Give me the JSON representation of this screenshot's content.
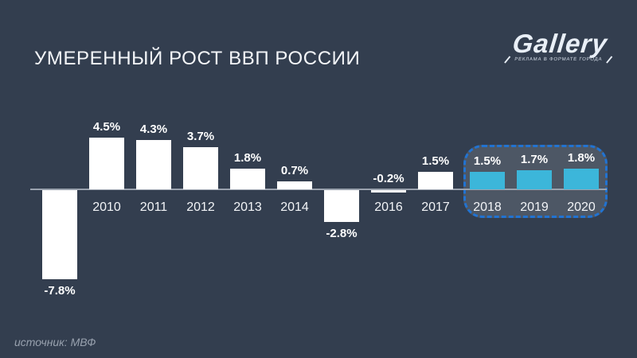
{
  "header": {
    "title": "УМЕРЕННЫЙ РОСТ ВВП РОССИИ"
  },
  "logo": {
    "name": "Gallery",
    "tagline": "РЕКЛАМА В ФОРМАТЕ ГОРОДА"
  },
  "footer": {
    "source": "источник: МВФ"
  },
  "colors": {
    "background": "#333e4f",
    "actual_bar": "#ffffff",
    "forecast_bar": "#3cb6da",
    "forecast_box_border": "#2173d2",
    "axis": "#9aa2ae",
    "text": "#ffffff",
    "muted_text": "#98a1ae"
  },
  "chart_data": {
    "type": "bar",
    "title": "УМЕРЕННЫЙ РОСТ ВВП РОССИИ",
    "unit": "%",
    "categories": [
      "",
      "2010",
      "2011",
      "2012",
      "2013",
      "2014",
      "",
      "2016",
      "2017",
      "2018",
      "2019",
      "2020"
    ],
    "values": [
      -7.8,
      4.5,
      4.3,
      3.7,
      1.8,
      0.7,
      -2.8,
      -0.2,
      1.5,
      1.5,
      1.7,
      1.8
    ],
    "value_labels": [
      "-7.8%",
      "4.5%",
      "4.3%",
      "3.7%",
      "1.8%",
      "0.7%",
      "-2.8%",
      "-0.2%",
      "1.5%",
      "1.5%",
      "1.7%",
      "1.8%"
    ],
    "forecast": [
      false,
      false,
      false,
      false,
      false,
      false,
      false,
      false,
      false,
      true,
      true,
      true
    ],
    "forecast_highlight": {
      "years": [
        "2018",
        "2019",
        "2020"
      ],
      "style": "dashed-rounded-box"
    },
    "xlabel": "",
    "ylabel": "",
    "ylim": [
      -8.5,
      5.5
    ],
    "grid": false,
    "legend": false,
    "source": "источник: МВФ"
  }
}
